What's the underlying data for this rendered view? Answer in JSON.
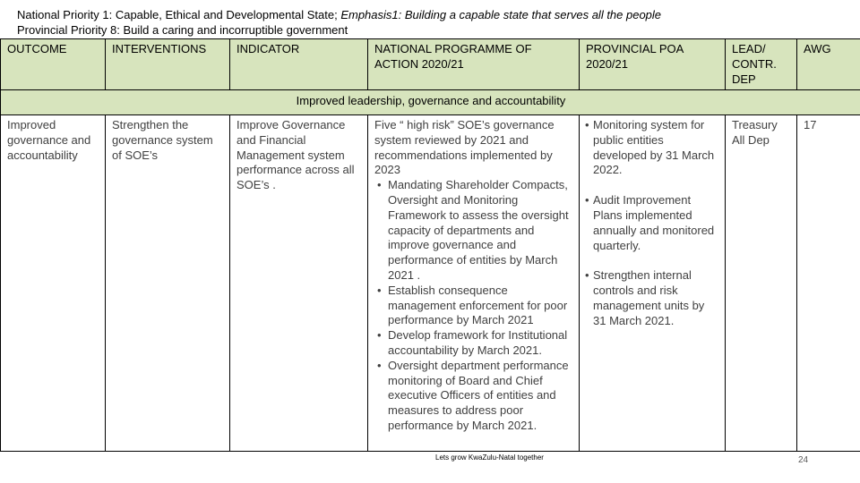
{
  "header": {
    "line1": "National Priority 1: Capable, Ethical and Developmental State; ",
    "line1_emphasis": "Emphasis1: Building a capable state that serves all the  people",
    "line2": "Provincial Priority 8: Build a caring and incorruptible government"
  },
  "table": {
    "columns": [
      "OUTCOME",
      "INTERVENTIONS",
      "INDICATOR",
      "NATIONAL PROGRAMME OF ACTION 2020/21",
      "PROVINCIAL  POA 2020/21",
      "LEAD/ CONTR. DEP",
      "AWG"
    ],
    "section": "Improved leadership, governance and accountability",
    "rows": [
      {
        "outcome": "Improved governance and accountability",
        "interventions": "Strengthen the governance system of SOE’s",
        "indicator": "Improve Governance and Financial Management system performance across all SOE’s .",
        "national_programme": {
          "intro": "Five “ high risk” SOE’s governance system reviewed by 2021 and recommendations implemented by 2023",
          "bullets": [
            "Mandating Shareholder Compacts, Oversight and Monitoring Framework to assess the oversight capacity of departments and improve governance and performance of entities by March 2021 .",
            "Establish consequence management enforcement for poor performance by March 2021",
            "Develop framework for Institutional accountability by March 2021.",
            "Oversight department performance monitoring of Board and Chief executive Officers of entities and measures to address poor performance by March 2021."
          ]
        },
        "provincial_poa": [
          "Monitoring system for public entities developed by 31 March 2022.",
          "Audit Improvement Plans implemented annually and monitored quarterly.",
          "Strengthen internal controls and risk management units by 31 March 2021."
        ],
        "lead": "Treasury All Dep",
        "awg": "17"
      }
    ]
  },
  "footer": {
    "slogan": "Lets grow KwaZulu-Natal together",
    "page": "24"
  }
}
